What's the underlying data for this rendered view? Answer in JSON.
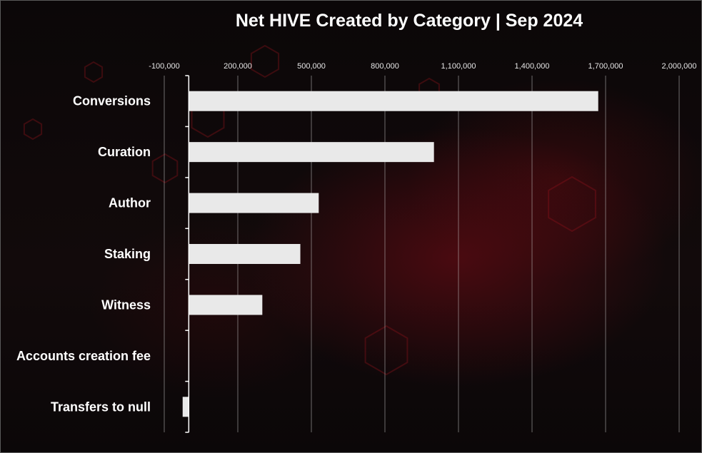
{
  "chart_data": {
    "type": "bar",
    "orientation": "horizontal",
    "title": "Net HIVE Created by Category | Sep 2024",
    "categories": [
      "Conversions",
      "Curation",
      "Author",
      "Staking",
      "Witness",
      "Accounts creation fee",
      "Transfers to null"
    ],
    "values": [
      1670000,
      1000000,
      530000,
      455000,
      300000,
      0,
      -25000
    ],
    "xlim": [
      -100000,
      2000000
    ],
    "xticks": [
      -100000,
      200000,
      500000,
      800000,
      1100000,
      1400000,
      1700000,
      2000000
    ],
    "xtick_labels": [
      "-100,000",
      "200,000",
      "500,000",
      "800,000",
      "1,100,000",
      "1,400,000",
      "1,700,000",
      "2,000,000"
    ],
    "axis_position": "top",
    "grid": true,
    "bar_color": "#e9e9e9",
    "gridline_color": "#bfbfbf",
    "legend": "none"
  }
}
